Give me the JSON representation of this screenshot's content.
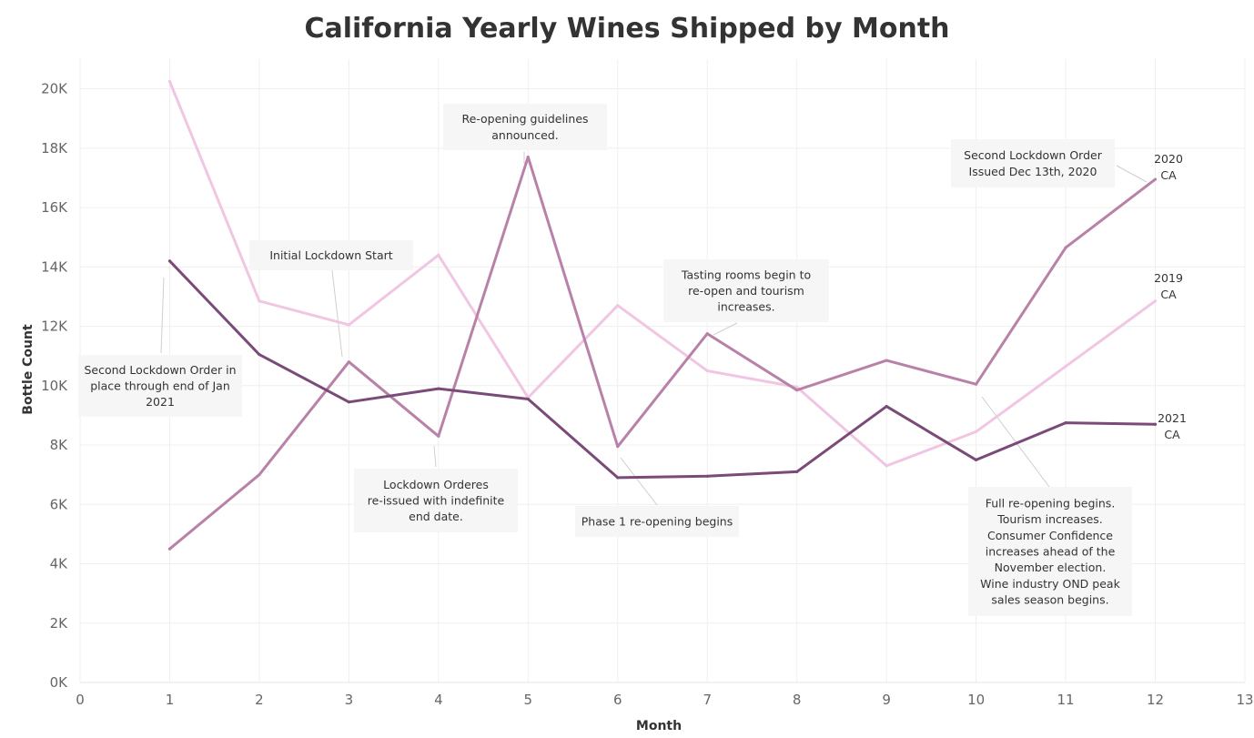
{
  "chart_data": {
    "type": "line",
    "title": "California Yearly Wines Shipped by Month",
    "xlabel": "Month",
    "ylabel": "Bottle Count",
    "xlim": [
      0,
      13
    ],
    "ylim": [
      0,
      21000
    ],
    "x_ticks": [
      "0",
      "1",
      "2",
      "3",
      "4",
      "5",
      "6",
      "7",
      "8",
      "9",
      "10",
      "11",
      "12",
      "13"
    ],
    "y_ticks": [
      {
        "v": 0,
        "label": "0K"
      },
      {
        "v": 2000,
        "label": "2K"
      },
      {
        "v": 4000,
        "label": "4K"
      },
      {
        "v": 6000,
        "label": "6K"
      },
      {
        "v": 8000,
        "label": "8K"
      },
      {
        "v": 10000,
        "label": "10K"
      },
      {
        "v": 12000,
        "label": "12K"
      },
      {
        "v": 14000,
        "label": "14K"
      },
      {
        "v": 16000,
        "label": "16K"
      },
      {
        "v": 18000,
        "label": "18K"
      },
      {
        "v": 20000,
        "label": "20K"
      }
    ],
    "grid": true,
    "x": [
      1,
      2,
      3,
      4,
      5,
      6,
      7,
      8,
      9,
      10,
      11,
      12
    ],
    "series": [
      {
        "label_lines": [
          "2019",
          "CA"
        ],
        "color": "#f0c6e2",
        "values": [
          20250,
          12850,
          12050,
          14400,
          9600,
          12700,
          10500,
          9950,
          7300,
          8450,
          10650,
          12850
        ]
      },
      {
        "label_lines": [
          "2020",
          "CA"
        ],
        "color": "#b882a8",
        "values": [
          4500,
          7000,
          10800,
          8300,
          17700,
          7950,
          11750,
          9850,
          10850,
          10050,
          14650,
          16950
        ]
      },
      {
        "label_lines": [
          "2021",
          "CA"
        ],
        "color": "#7a4a78",
        "values": [
          14200,
          11050,
          9450,
          9900,
          9550,
          6900,
          6950,
          7100,
          9300,
          7500,
          8750,
          8700
        ]
      }
    ],
    "annotations": [
      {
        "lines": [
          "Second Lockdown Order in",
          "place through end of Jan",
          "2021"
        ]
      },
      {
        "lines": [
          "Initial Lockdown Start"
        ]
      },
      {
        "lines": [
          "Lockdown Orderes",
          "re-issued with indefinite",
          "end date."
        ]
      },
      {
        "lines": [
          "Re-opening guidelines",
          "announced."
        ]
      },
      {
        "lines": [
          "Phase 1 re-opening begins"
        ]
      },
      {
        "lines": [
          "Tasting rooms begin to",
          "re-open and tourism",
          "increases."
        ]
      },
      {
        "lines": [
          "Full re-opening begins.",
          "Tourism increases.",
          "Consumer Confidence",
          "increases ahead of the",
          "November election.",
          "Wine industry OND peak",
          "sales season begins."
        ]
      },
      {
        "lines": [
          "Second Lockdown Order",
          "Issued Dec 13th, 2020"
        ]
      }
    ]
  }
}
